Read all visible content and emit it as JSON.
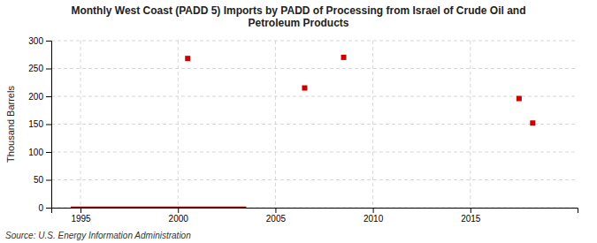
{
  "chart_data": {
    "type": "scatter",
    "title": "Monthly West Coast (PADD 5) Imports by PADD of Processing from Israel of Crude Oil and\nPetroleum Products",
    "y_label": "Thousand Barrels",
    "source": "Source: U.S. Energy Information Administration",
    "xlim": [
      1993.5,
      2020.5
    ],
    "ylim": [
      0,
      300
    ],
    "xticks": [
      1995,
      2000,
      2005,
      2010,
      2015
    ],
    "yticks": [
      0,
      50,
      100,
      150,
      200,
      250,
      300
    ],
    "grid": true,
    "series": [
      {
        "type": "scatter",
        "marker": "square",
        "color": "#cc0000",
        "x": [
          2000.5,
          2006.5,
          2008.5,
          2017.5,
          2018.2
        ],
        "values": [
          268,
          215,
          270,
          196,
          152
        ]
      },
      {
        "type": "line",
        "line_style": "solid",
        "color": "#8b0000",
        "x": [
          1994.5,
          2003.5
        ],
        "values": [
          0,
          0
        ]
      }
    ]
  }
}
